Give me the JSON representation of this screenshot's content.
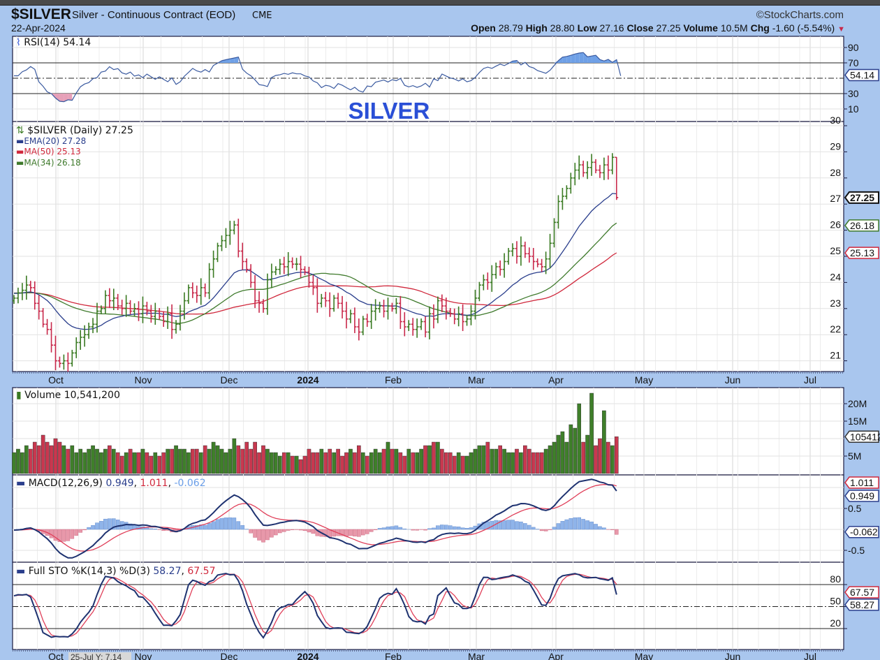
{
  "header": {
    "symbol": "$SILVER",
    "name": "Silver - Continuous Contract (EOD)",
    "exchange": "CME",
    "date": "22-Apr-2024",
    "copyright": "©StockCharts.com",
    "open_label": "Open",
    "open": "28.79",
    "high_label": "High",
    "high": "28.80",
    "low_label": "Low",
    "low": "27.16",
    "close_label": "Close",
    "close": "27.25",
    "volume_label": "Volume",
    "volume": "10.5M",
    "chg_label": "Chg",
    "chg": "-1.60 (-5.54%)",
    "chg_arrow": "▼"
  },
  "colors": {
    "up": "#3a7a22",
    "down": "#c8284a",
    "ema20": "#2a3e8c",
    "ma50": "#d0283c",
    "ma34": "#3f7a2c",
    "background": "#a9c6ee",
    "annotation": "#2a4fd6"
  },
  "annotation": "SILVER",
  "rsi": {
    "legend": "RSI(14) 54.14",
    "value": "54.14",
    "ticks": [
      "90",
      "70",
      "30",
      "10"
    ],
    "overbought": 70,
    "oversold": 30
  },
  "price": {
    "legend": "$SILVER (Daily) 27.25",
    "ema20_legend": "EMA(20) 27.28",
    "ma50_legend": "MA(50) 25.13",
    "ma34_legend": "MA(34) 26.18",
    "tag_close": "27.25",
    "tag_ma34": "26.18",
    "tag_ma50": "25.13",
    "ticks": [
      "30",
      "29",
      "28",
      "27",
      "26",
      "25",
      "24",
      "23",
      "22",
      "21"
    ]
  },
  "xaxis": {
    "labels": [
      "Oct",
      "Nov",
      "Dec",
      "2024",
      "Feb",
      "Mar",
      "Apr",
      "May",
      "Jun",
      "Jul"
    ],
    "cursor_readout": "25-Jul Y: 7.14"
  },
  "volume": {
    "legend": "Volume 10,541,200",
    "tag": "10541200",
    "ticks": [
      "20M",
      "15M",
      "5M"
    ]
  },
  "macd": {
    "legend_label": "MACD(12,26,9)",
    "macd": "0.949",
    "signal": "1.011",
    "hist": "-0.062",
    "ticks": [
      "0.5",
      "-0.5"
    ],
    "tag_macd": "0.949",
    "tag_signal": "1.011",
    "tag_hist": "-0.062"
  },
  "sto": {
    "legend_label": "Full STO %K(14,3) %D(3)",
    "k": "58.27",
    "d": "67.57",
    "ticks": [
      "80",
      "50",
      "20"
    ]
  },
  "chart_data": {
    "type": "ohlc",
    "title": "$SILVER Silver - Continuous Contract (EOD) CME",
    "closes": [
      23.4,
      23.6,
      23.7,
      23.9,
      23.8,
      23.2,
      22.9,
      22.4,
      22.2,
      21.6,
      21.0,
      20.9,
      21.0,
      20.9,
      21.3,
      21.7,
      21.9,
      22.0,
      22.3,
      22.4,
      22.9,
      23.0,
      23.5,
      23.3,
      23.4,
      23.1,
      23.0,
      23.2,
      22.9,
      23.0,
      22.8,
      23.1,
      22.9,
      22.7,
      22.9,
      22.7,
      22.5,
      22.8,
      22.2,
      22.4,
      22.9,
      23.3,
      23.8,
      23.6,
      23.5,
      23.8,
      23.6,
      24.5,
      24.9,
      25.4,
      25.6,
      25.8,
      26.0,
      26.2,
      25.2,
      24.8,
      24.5,
      24.0,
      23.3,
      23.2,
      23.0,
      24.1,
      24.4,
      24.5,
      24.7,
      24.6,
      24.8,
      24.7,
      24.7,
      24.5,
      24.4,
      24.0,
      23.8,
      23.2,
      23.4,
      23.3,
      23.0,
      23.4,
      23.2,
      22.9,
      22.6,
      22.8,
      22.3,
      22.1,
      22.6,
      22.5,
      22.9,
      23.0,
      23.1,
      22.9,
      23.1,
      23.0,
      23.2,
      22.5,
      22.3,
      22.4,
      22.2,
      22.3,
      22.5,
      22.1,
      22.8,
      22.6,
      23.3,
      23.1,
      22.9,
      22.8,
      22.6,
      22.8,
      22.5,
      22.6,
      22.9,
      23.4,
      23.9,
      24.1,
      24.0,
      24.3,
      24.6,
      24.5,
      24.8,
      25.2,
      25.3,
      25.0,
      25.4,
      25.1,
      25.0,
      24.8,
      24.7,
      24.6,
      24.9,
      25.5,
      26.3,
      27.1,
      27.3,
      27.6,
      28.0,
      28.3,
      28.5,
      28.2,
      28.4,
      28.6,
      28.3,
      28.2,
      28.5,
      28.3,
      28.79,
      27.25
    ],
    "volumes_millions": [
      6,
      7,
      6,
      8,
      7,
      9,
      8,
      11,
      9,
      8,
      10,
      9,
      8,
      7,
      8,
      6,
      7,
      6,
      7,
      8,
      7,
      6,
      7,
      8,
      7,
      6,
      5,
      6,
      7,
      6,
      6,
      7,
      6,
      5,
      6,
      5,
      6,
      7,
      7,
      8,
      7,
      7,
      6,
      7,
      7,
      6,
      8,
      7,
      9,
      8,
      7,
      6,
      7,
      10,
      8,
      7,
      9,
      7,
      9,
      6,
      8,
      7,
      6,
      6,
      5,
      6,
      6,
      5,
      5,
      4,
      5,
      7,
      6,
      6,
      7,
      6,
      7,
      6,
      7,
      5,
      6,
      7,
      6,
      8,
      6,
      5,
      6,
      7,
      6,
      7,
      9,
      7,
      7,
      6,
      5,
      7,
      6,
      6,
      7,
      8,
      8,
      9,
      9,
      7,
      6,
      6,
      5,
      6,
      5,
      5,
      6,
      7,
      8,
      8,
      9,
      7,
      7,
      8,
      7,
      6,
      6,
      7,
      6,
      8,
      7,
      6,
      6,
      6,
      7,
      8,
      9,
      11,
      12,
      9,
      14,
      13,
      20,
      9,
      11,
      23,
      8,
      10,
      18,
      9,
      8,
      10.54
    ],
    "last_bar": {
      "open": 28.79,
      "high": 28.8,
      "low": 27.16,
      "close": 27.25
    },
    "price_ylim": [
      20.8,
      30.2
    ],
    "overlays": [
      "EMA(20)",
      "MA(50)",
      "MA(34)"
    ],
    "indicators": [
      "RSI(14)",
      "Volume",
      "MACD(12,26,9)",
      "Full STO %K(14,3) %D(3)"
    ],
    "grid": true
  }
}
